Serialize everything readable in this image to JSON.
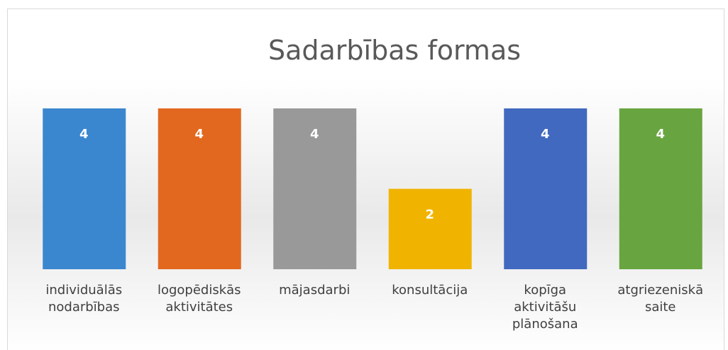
{
  "chart_data": {
    "type": "bar",
    "title": "Sadarbības formas",
    "categories": [
      "individuālās nodarbības",
      "logopēdiskās aktivitātes",
      "mājasdarbi",
      "konsultācija",
      "kopīga aktivitāšu plānošana",
      "atgriezeniskā saite"
    ],
    "values": [
      4,
      4,
      4,
      2,
      4,
      4
    ],
    "colors": [
      "#3b87cf",
      "#e2681f",
      "#999999",
      "#f0b400",
      "#4169bf",
      "#68a540"
    ]
  }
}
